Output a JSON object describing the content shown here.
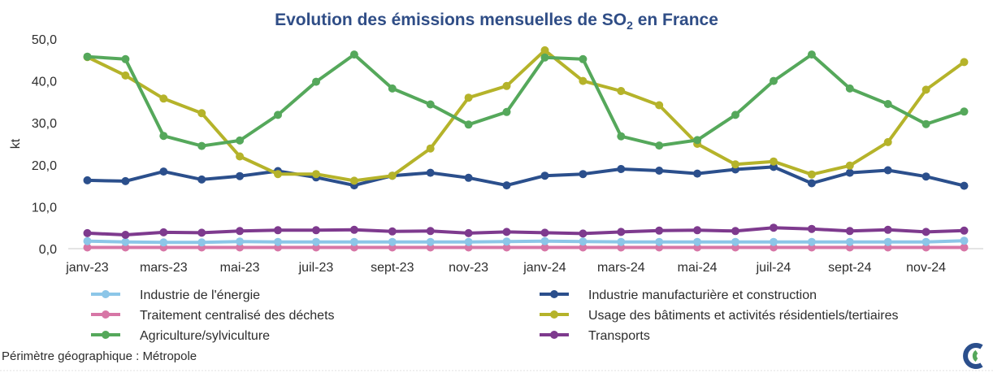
{
  "chart_data": {
    "type": "line",
    "title_main": "Evolution des émissions mensuelles de SO",
    "title_sub": "2",
    "title_end": " en France",
    "ylabel": "kt",
    "ylim": [
      0,
      50
    ],
    "yticks": [
      "0,0",
      "10,0",
      "20,0",
      "30,0",
      "40,0",
      "50,0"
    ],
    "ytick_values": [
      0,
      10,
      20,
      30,
      40,
      50
    ],
    "categories": [
      "janv-23",
      "févr-23",
      "mars-23",
      "avr-23",
      "mai-23",
      "juin-23",
      "juil-23",
      "août-23",
      "sept-23",
      "oct-23",
      "nov-23",
      "déc-23",
      "janv-24",
      "févr-24",
      "mars-24",
      "avr-24",
      "mai-24",
      "juin-24",
      "juil-24",
      "août-24",
      "sept-24",
      "oct-24",
      "nov-24",
      "déc-24"
    ],
    "xtick_labels": [
      "janv-23",
      "",
      "mars-23",
      "",
      "mai-23",
      "",
      "juil-23",
      "",
      "sept-23",
      "",
      "nov-23",
      "",
      "janv-24",
      "",
      "mars-24",
      "",
      "mai-24",
      "",
      "juil-24",
      "",
      "sept-24",
      "",
      "nov-24",
      ""
    ],
    "grid": false,
    "legend_position": "bottom",
    "series": [
      {
        "name": "Industrie de l'énergie",
        "color": "#8cc6e8",
        "values": [
          1.8,
          1.6,
          1.5,
          1.5,
          1.7,
          1.6,
          1.6,
          1.6,
          1.6,
          1.6,
          1.6,
          1.7,
          1.8,
          1.7,
          1.6,
          1.6,
          1.6,
          1.6,
          1.6,
          1.6,
          1.6,
          1.6,
          1.6,
          1.9
        ]
      },
      {
        "name": "Industrie manufacturière et construction",
        "color": "#2b4f8c",
        "values": [
          16.3,
          16.1,
          18.4,
          16.5,
          17.3,
          18.5,
          17.0,
          15.1,
          17.4,
          18.1,
          16.9,
          15.1,
          17.4,
          17.8,
          19.0,
          18.6,
          17.9,
          18.9,
          19.5,
          15.6,
          18.1,
          18.7,
          17.2,
          15.0
        ]
      },
      {
        "name": "Traitement centralisé des déchets",
        "color": "#d776a6",
        "values": [
          0.3,
          0.3,
          0.3,
          0.3,
          0.3,
          0.3,
          0.3,
          0.3,
          0.3,
          0.3,
          0.3,
          0.3,
          0.3,
          0.3,
          0.3,
          0.3,
          0.3,
          0.3,
          0.3,
          0.3,
          0.3,
          0.3,
          0.3,
          0.3
        ]
      },
      {
        "name": "Usage des bâtiments et activités résidentiels/tertiaires",
        "color": "#b5b32a",
        "values": [
          45.7,
          41.3,
          35.8,
          32.3,
          22.0,
          17.8,
          17.8,
          16.2,
          17.4,
          23.9,
          36.0,
          38.8,
          47.3,
          40.0,
          37.6,
          34.2,
          25.0,
          20.1,
          20.8,
          17.7,
          19.8,
          25.4,
          37.9,
          44.5
        ]
      },
      {
        "name": "Agriculture/sylviculture",
        "color": "#55a85b",
        "values": [
          45.8,
          45.2,
          26.9,
          24.5,
          25.8,
          31.9,
          39.8,
          46.3,
          38.2,
          34.4,
          29.6,
          32.6,
          45.6,
          45.2,
          26.8,
          24.6,
          25.9,
          31.9,
          40.0,
          46.3,
          38.2,
          34.5,
          29.7,
          32.7
        ]
      },
      {
        "name": "Transports",
        "color": "#7e3a8e",
        "values": [
          3.7,
          3.3,
          3.9,
          3.8,
          4.2,
          4.4,
          4.4,
          4.5,
          4.1,
          4.2,
          3.7,
          4.0,
          3.8,
          3.6,
          4.0,
          4.3,
          4.4,
          4.2,
          5.0,
          4.7,
          4.2,
          4.5,
          4.0,
          4.3
        ]
      }
    ],
    "draw_order": [
      2,
      0,
      5,
      1,
      3,
      4
    ],
    "legend_order": [
      0,
      1,
      2,
      3,
      4,
      5
    ],
    "note": "Périmètre géographique : Métropole"
  },
  "logo": {
    "name": "circular-arrows-logo",
    "colors": [
      "#2b4f8c",
      "#55a85b"
    ]
  }
}
